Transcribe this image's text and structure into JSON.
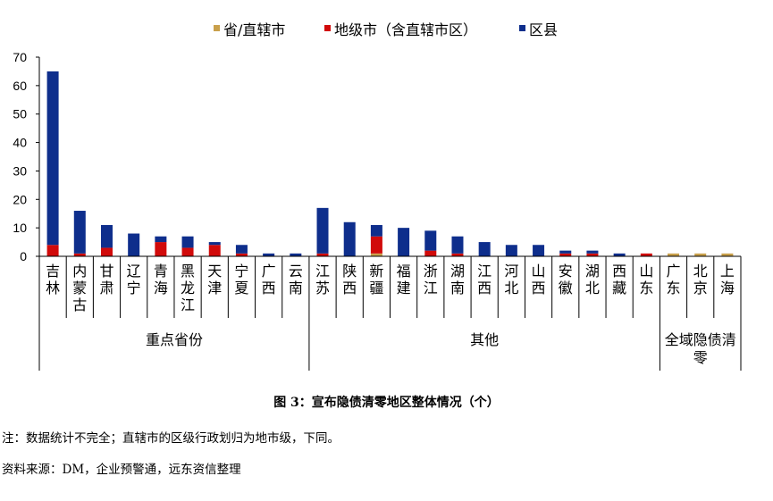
{
  "chart_data": {
    "type": "bar",
    "stacked": true,
    "categories": [
      "吉林",
      "内蒙古",
      "甘肃",
      "辽宁",
      "青海",
      "黑龙江",
      "天津",
      "宁夏",
      "广西",
      "云南",
      "江苏",
      "陕西",
      "新疆",
      "福建",
      "浙江",
      "湖南",
      "江西",
      "河北",
      "山西",
      "安徽",
      "湖北",
      "西藏",
      "山东",
      "广东",
      "北京",
      "上海"
    ],
    "series": [
      {
        "name": "省/直辖市",
        "color": "#C9A04B",
        "values": [
          0,
          0,
          0,
          0,
          0,
          0,
          0,
          0,
          0,
          0,
          0,
          0,
          1,
          0,
          0,
          0,
          0,
          0,
          0,
          0,
          0,
          0,
          0,
          1,
          1,
          1
        ]
      },
      {
        "name": "地级市（含直辖市区）",
        "color": "#D10A0A",
        "values": [
          4,
          1,
          3,
          0,
          5,
          3,
          4,
          1,
          0,
          0,
          1,
          0,
          6,
          0,
          2,
          1,
          0,
          0,
          0,
          1,
          1,
          0,
          1,
          0,
          0,
          0
        ]
      },
      {
        "name": "区县",
        "color": "#0E2E8C",
        "values": [
          61,
          15,
          8,
          8,
          2,
          4,
          1,
          3,
          1,
          1,
          16,
          12,
          4,
          10,
          7,
          6,
          5,
          4,
          4,
          1,
          1,
          1,
          0,
          0,
          0,
          0
        ]
      }
    ],
    "groups": [
      {
        "label": "重点省份",
        "start": 0,
        "end": 9
      },
      {
        "label": "其他",
        "start": 10,
        "end": 22
      },
      {
        "label": "全域隐债清零",
        "start": 23,
        "end": 25
      }
    ],
    "yticks": [
      "0",
      "10",
      "20",
      "30",
      "40",
      "50",
      "60",
      "70"
    ],
    "ylim": [
      0,
      70
    ],
    "legend_position": "top"
  },
  "caption": {
    "title": "图 3：宣布隐债清零地区整体情况（个）",
    "note": "注：数据统计不完全；直辖市的区级行政划归为地市级，下同。",
    "source": "资料来源：DM，企业预警通，远东资信整理"
  }
}
